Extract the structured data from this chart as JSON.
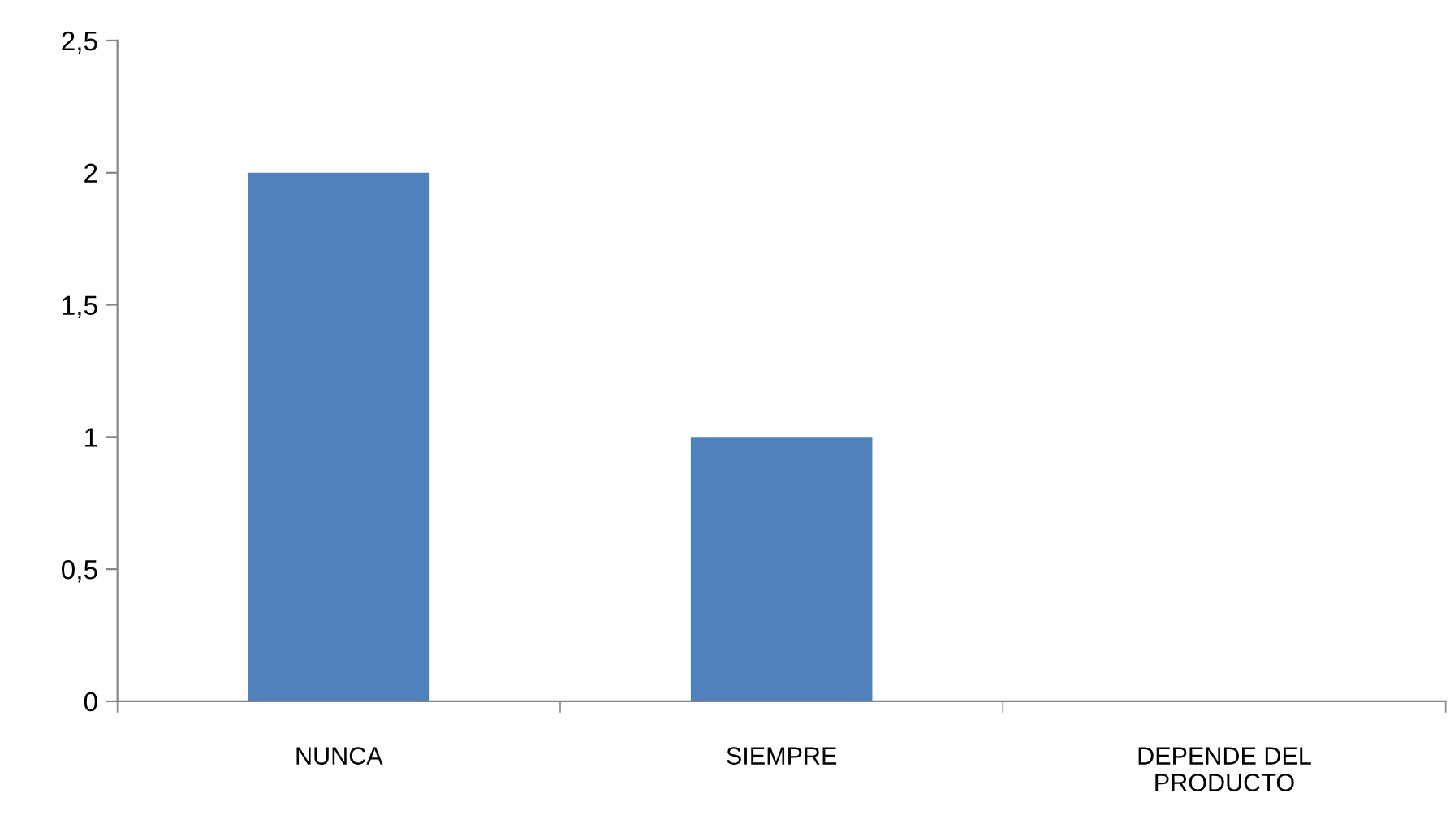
{
  "chart_data": {
    "type": "bar",
    "categories": [
      "NUNCA",
      "SIEMPRE",
      "DEPENDE DEL\nPRODUCTO"
    ],
    "values": [
      2,
      1,
      0
    ],
    "color": "#4f81bd",
    "ylim": [
      0,
      2.5
    ],
    "yticks": [
      0,
      {
        "value": 0.5,
        "label": "0,5"
      },
      1,
      {
        "value": 1.5,
        "label": "1,5"
      },
      2,
      {
        "value": 2.5,
        "label": "2,5"
      }
    ],
    "grid": false,
    "legend": false
  }
}
